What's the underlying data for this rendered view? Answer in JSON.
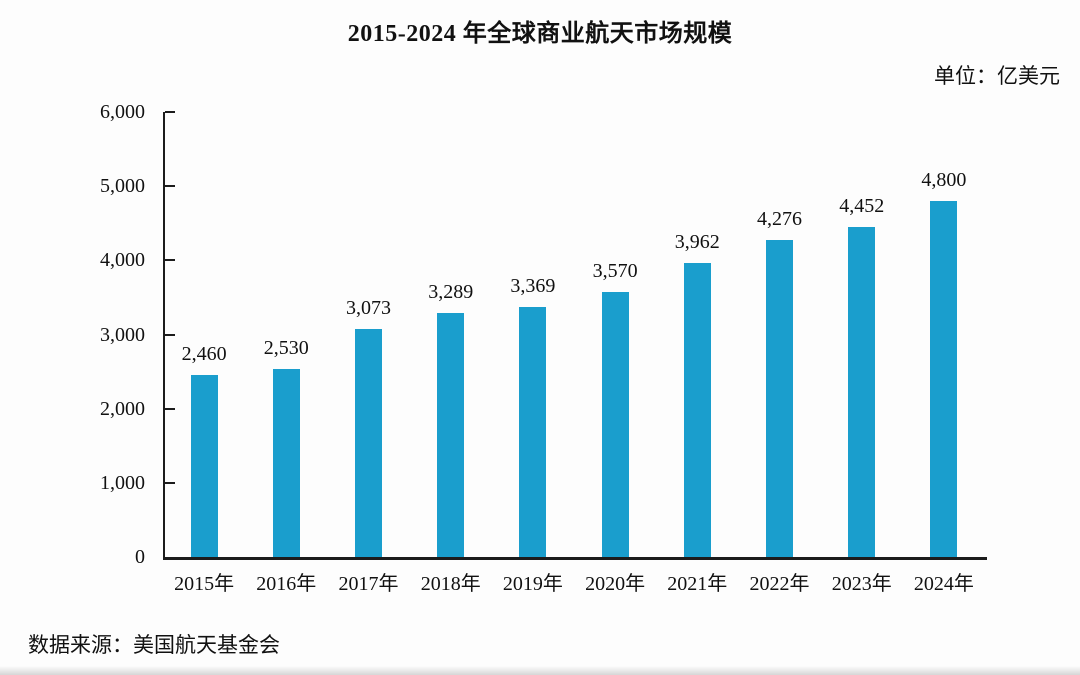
{
  "source": "数据来源：美国航天基金会",
  "chart_data": {
    "type": "bar",
    "title": "2015-2024 年全球商业航天市场规模",
    "unit_label": "单位：亿美元",
    "categories": [
      "2015年",
      "2016年",
      "2017年",
      "2018年",
      "2019年",
      "2020年",
      "2021年",
      "2022年",
      "2023年",
      "2024年"
    ],
    "values": [
      2460,
      2530,
      3073,
      3289,
      3369,
      3570,
      3962,
      4276,
      4452,
      4800
    ],
    "value_labels": [
      "2,460",
      "2,530",
      "3,073",
      "3,289",
      "3,369",
      "3,570",
      "3,962",
      "4,276",
      "4,452",
      "4,800"
    ],
    "ytick_labels": [
      "0",
      "1,000",
      "2,000",
      "3,000",
      "4,000",
      "5,000",
      "6,000"
    ],
    "ytick_values": [
      0,
      1000,
      2000,
      3000,
      4000,
      5000,
      6000
    ],
    "ylim": [
      0,
      6000
    ],
    "xlabel": "",
    "ylabel": "",
    "grid": false,
    "legend_position": "none",
    "bar_color": "#1a9ecd",
    "axis_color": "#1c1c1c"
  }
}
